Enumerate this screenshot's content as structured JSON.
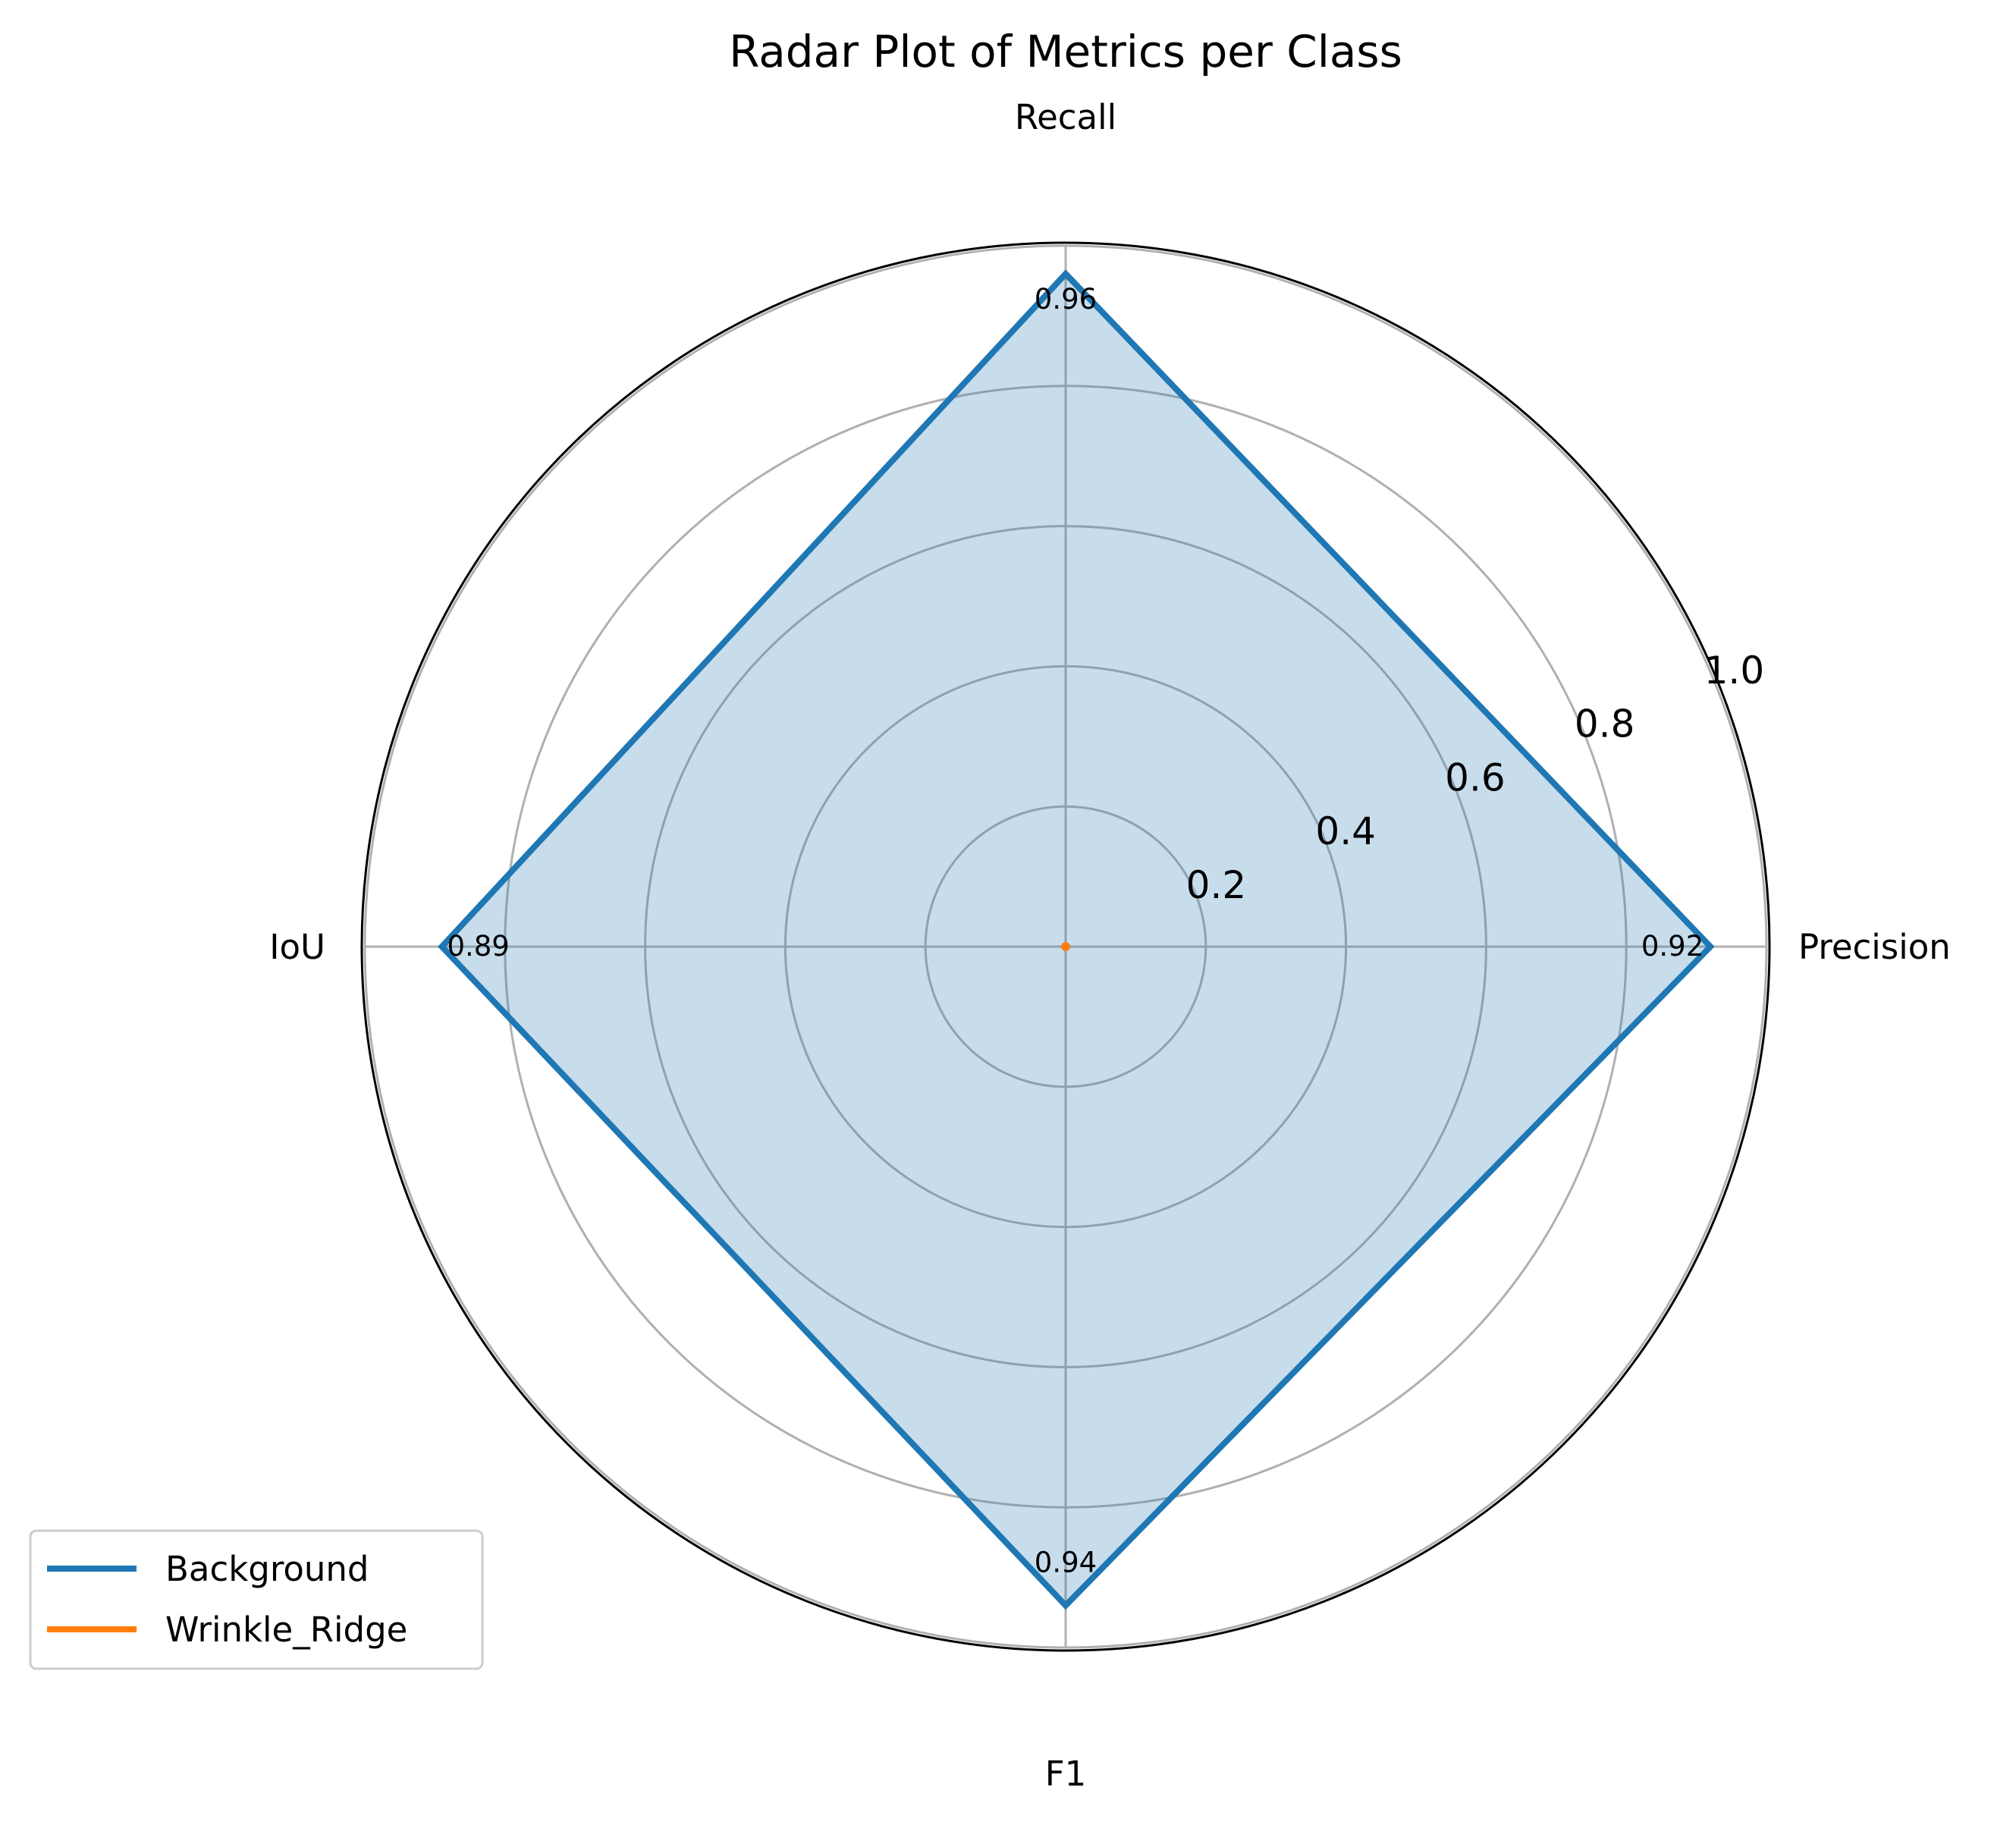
{
  "chart_data": {
    "type": "radar",
    "title": "Radar Plot of Metrics per Class",
    "axes": [
      "Precision",
      "Recall",
      "IoU",
      "F1"
    ],
    "radial_ticks": [
      "0.2",
      "0.4",
      "0.6",
      "0.8",
      "1.0"
    ],
    "rlim": [
      0,
      1.0
    ],
    "grid": true,
    "legend_position": "lower-left",
    "series": [
      {
        "name": "Background",
        "values": [
          0.92,
          0.96,
          0.89,
          0.94
        ],
        "labels": [
          "0.92",
          "0.96",
          "0.89",
          "0.94"
        ],
        "color": "#1f77b4",
        "fill": true
      },
      {
        "name": "Wrinkle_Ridge",
        "values": [
          0,
          0,
          0,
          0
        ],
        "color": "#ff7f0e",
        "fill": false
      }
    ]
  }
}
